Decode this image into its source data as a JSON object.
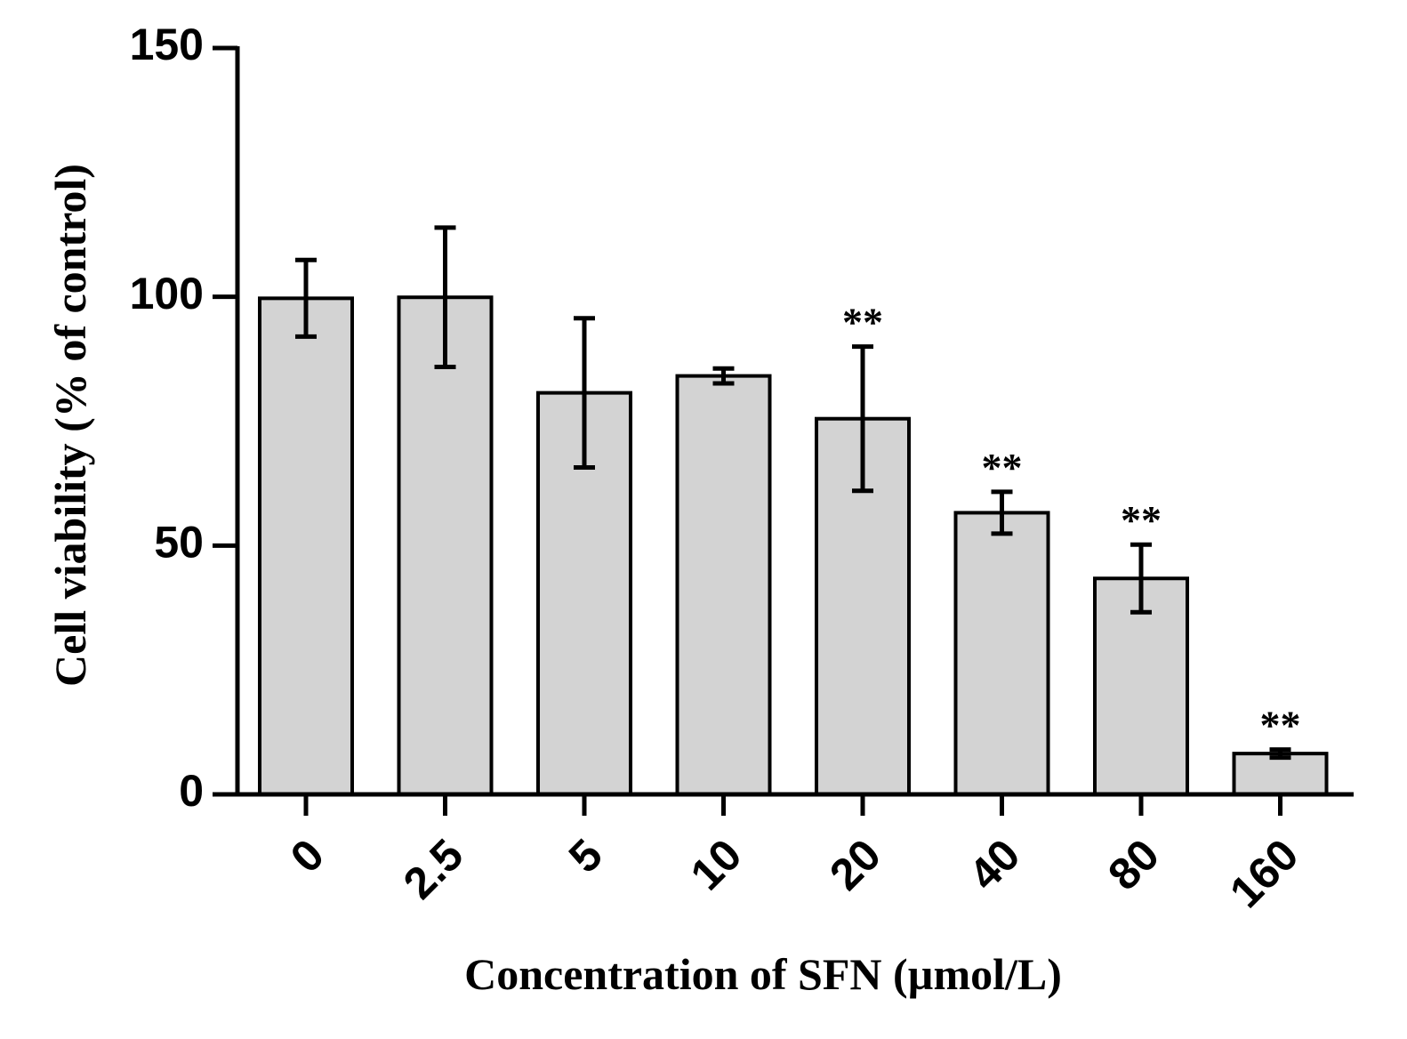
{
  "chart_data": {
    "type": "bar",
    "title": "",
    "xlabel": "Concentration of SFN (µmol/L)",
    "ylabel": "Cell viability (% of control)",
    "categories": [
      "0",
      "2.5",
      "5",
      "10",
      "20",
      "40",
      "80",
      "160"
    ],
    "values": [
      99.7,
      99.9,
      80.7,
      84.1,
      75.5,
      56.6,
      43.4,
      8.2
    ],
    "errors": [
      7.7,
      14.0,
      15.0,
      1.5,
      14.5,
      4.2,
      6.8,
      0.8
    ],
    "significance": [
      "",
      "",
      "",
      "",
      "**",
      "**",
      "**",
      "**"
    ],
    "ylim": [
      0,
      150
    ],
    "yticks": [
      0,
      50,
      100,
      150
    ],
    "grid": false,
    "bar_color": "#d3d3d3",
    "edge_color": "#000000"
  }
}
